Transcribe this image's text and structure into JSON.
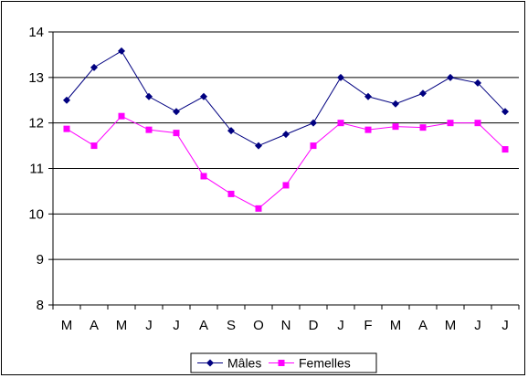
{
  "chart_data": {
    "type": "line",
    "categories": [
      "M",
      "A",
      "M",
      "J",
      "J",
      "A",
      "S",
      "O",
      "N",
      "D",
      "J",
      "F",
      "M",
      "A",
      "M",
      "J",
      "J"
    ],
    "series": [
      {
        "name": "Mâles",
        "color": "#000080",
        "marker": "diamond",
        "values": [
          12.5,
          13.22,
          13.58,
          12.58,
          12.25,
          12.58,
          11.83,
          11.5,
          11.75,
          12.0,
          13.0,
          12.58,
          12.42,
          12.65,
          13.0,
          12.88,
          12.25
        ]
      },
      {
        "name": "Femelles",
        "color": "#FF00FF",
        "marker": "square",
        "values": [
          11.87,
          11.5,
          12.15,
          11.85,
          11.78,
          10.83,
          10.44,
          10.12,
          10.63,
          11.5,
          12.0,
          11.85,
          11.92,
          11.9,
          12.0,
          12.0,
          11.42
        ]
      }
    ],
    "ylim": [
      8,
      14
    ],
    "yticks": [
      8,
      9,
      10,
      11,
      12,
      13,
      14
    ],
    "grid": true,
    "legend": "bottom"
  }
}
